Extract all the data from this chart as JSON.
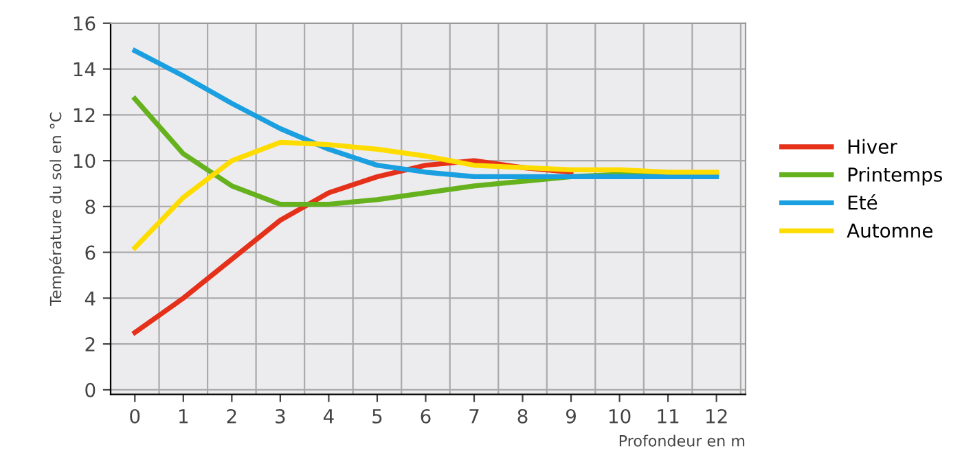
{
  "chart_data": {
    "type": "line",
    "xlabel": "Profondeur en m",
    "ylabel": "Température du sol en °C",
    "x": [
      0,
      1,
      2,
      3,
      4,
      5,
      6,
      7,
      8,
      9,
      10,
      11,
      12
    ],
    "series": [
      {
        "name": "Hiver",
        "color": "#e5301a",
        "values": [
          2.5,
          4.0,
          5.7,
          7.4,
          8.6,
          9.3,
          9.8,
          10.0,
          9.7,
          9.5,
          null,
          null,
          null
        ]
      },
      {
        "name": "Printemps",
        "color": "#66b21e",
        "values": [
          12.7,
          10.3,
          8.9,
          8.1,
          8.1,
          8.3,
          8.6,
          8.9,
          9.1,
          9.3,
          9.4,
          9.4,
          9.4
        ]
      },
      {
        "name": "Eté",
        "color": "#1a9fe0",
        "values": [
          14.8,
          13.7,
          12.5,
          11.4,
          10.5,
          9.8,
          9.5,
          9.3,
          9.3,
          9.3,
          9.3,
          9.3,
          9.3
        ]
      },
      {
        "name": "Automne",
        "color": "#ffdc00",
        "values": [
          6.2,
          8.4,
          10.0,
          10.8,
          10.7,
          10.5,
          10.2,
          9.8,
          9.7,
          9.6,
          9.6,
          9.5,
          9.5
        ]
      }
    ],
    "xlim": [
      -0.5,
      12.6
    ],
    "ylim": [
      -0.2,
      16
    ],
    "xticks": [
      0,
      1,
      2,
      3,
      4,
      5,
      6,
      7,
      8,
      9,
      10,
      11,
      12
    ],
    "yticks": [
      0,
      2,
      4,
      6,
      8,
      10,
      12,
      14,
      16
    ],
    "grid": true,
    "legend": "right",
    "marker": "none",
    "line_style": "solid"
  }
}
